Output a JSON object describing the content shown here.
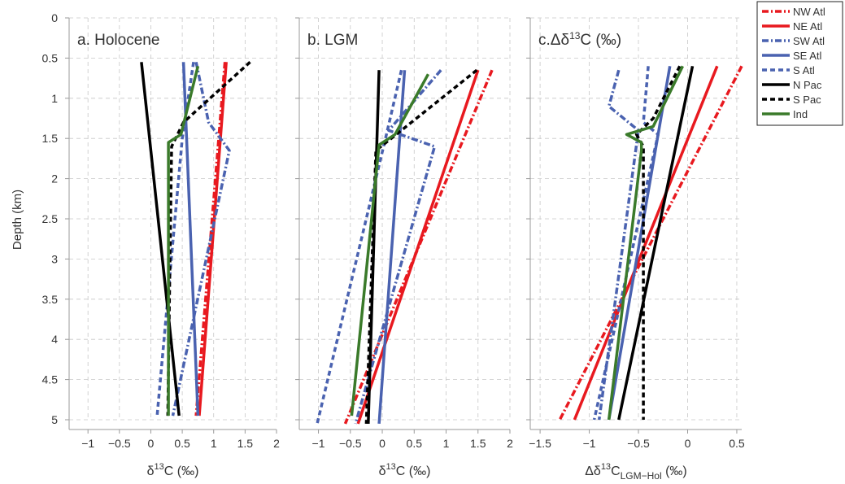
{
  "figure": {
    "ylabel": "Depth (km)",
    "yticks": [
      0,
      0.5,
      1,
      1.5,
      2,
      2.5,
      3,
      3.5,
      4,
      4.5,
      5
    ],
    "ylim": [
      0,
      5
    ],
    "legend": [
      {
        "name": "NW Atl",
        "color": "#e8191f",
        "dash": "dashdot"
      },
      {
        "name": "NE Atl",
        "color": "#e8191f",
        "dash": "solid"
      },
      {
        "name": "SW Atl",
        "color": "#4a62b0",
        "dash": "dashdot"
      },
      {
        "name": "SE Atl",
        "color": "#4a62b0",
        "dash": "solid"
      },
      {
        "name": "S Atl",
        "color": "#4a62b0",
        "dash": "dashed"
      },
      {
        "name": "N Pac",
        "color": "#000000",
        "dash": "solid"
      },
      {
        "name": "S Pac",
        "color": "#000000",
        "dash": "dashed"
      },
      {
        "name": "Ind",
        "color": "#3a7a2a",
        "dash": "solid"
      }
    ]
  },
  "chart_data": [
    {
      "type": "line",
      "title_prefix": "a.",
      "title": "Holocene",
      "xlabel_prefix": "δ",
      "xlabel_sup": "13",
      "xlabel_rest": "C (‰)",
      "xlim": [
        -1.3,
        2
      ],
      "xticks": [
        -1,
        -0.5,
        0,
        0.5,
        1,
        1.5,
        2
      ],
      "ylim": [
        0,
        5
      ],
      "grid": true,
      "series": [
        {
          "name": "NW Atl",
          "x": [
            1.18,
            0.72
          ],
          "y": [
            0.55,
            4.95
          ]
        },
        {
          "name": "NE Atl",
          "x": [
            1.2,
            0.77
          ],
          "y": [
            0.55,
            4.95
          ]
        },
        {
          "name": "SW Atl",
          "x": [
            0.72,
            0.92,
            1.25,
            0.35
          ],
          "y": [
            0.55,
            1.3,
            1.65,
            4.95
          ]
        },
        {
          "name": "SE Atl",
          "x": [
            0.52,
            0.75
          ],
          "y": [
            0.55,
            4.95
          ]
        },
        {
          "name": "S Atl",
          "x": [
            0.68,
            0.5,
            0.1
          ],
          "y": [
            0.55,
            1.5,
            4.95
          ]
        },
        {
          "name": "N Pac",
          "x": [
            -0.15,
            0.45
          ],
          "y": [
            0.55,
            4.95
          ]
        },
        {
          "name": "S Pac",
          "x": [
            1.58,
            0.52,
            0.33,
            0.27
          ],
          "y": [
            0.55,
            1.3,
            1.6,
            4.95
          ]
        },
        {
          "name": "Ind",
          "x": [
            0.75,
            0.48,
            0.28,
            0.28
          ],
          "y": [
            0.6,
            1.45,
            1.55,
            4.95
          ]
        }
      ]
    },
    {
      "type": "line",
      "title_prefix": "b.",
      "title": "LGM",
      "xlabel_prefix": "δ",
      "xlabel_sup": "13",
      "xlabel_rest": "C (‰)",
      "xlim": [
        -1.3,
        2
      ],
      "xticks": [
        -1,
        -0.5,
        0,
        0.5,
        1,
        1.5,
        2
      ],
      "ylim": [
        0,
        5
      ],
      "grid": true,
      "series": [
        {
          "name": "NW Atl",
          "x": [
            1.72,
            -0.58
          ],
          "y": [
            0.65,
            5.05
          ]
        },
        {
          "name": "NE Atl",
          "x": [
            1.5,
            -0.38
          ],
          "y": [
            0.65,
            5.05
          ]
        },
        {
          "name": "SW Atl",
          "x": [
            0.92,
            0.1,
            0.82,
            -0.42
          ],
          "y": [
            0.65,
            1.4,
            1.6,
            5.05
          ]
        },
        {
          "name": "SE Atl",
          "x": [
            0.35,
            -0.05
          ],
          "y": [
            0.65,
            5.05
          ]
        },
        {
          "name": "S Atl",
          "x": [
            0.3,
            0.05,
            -1.02
          ],
          "y": [
            0.65,
            1.5,
            5.05
          ]
        },
        {
          "name": "N Pac",
          "x": [
            -0.05,
            -0.22
          ],
          "y": [
            0.65,
            5.05
          ]
        },
        {
          "name": "S Pac",
          "x": [
            1.48,
            0.22,
            -0.1,
            -0.25
          ],
          "y": [
            0.65,
            1.45,
            1.65,
            5.05
          ]
        },
        {
          "name": "Ind",
          "x": [
            0.72,
            0.2,
            -0.05,
            -0.48
          ],
          "y": [
            0.7,
            1.45,
            1.58,
            4.95
          ]
        }
      ]
    },
    {
      "type": "line",
      "title_prefix": "c.",
      "title": "Δδ",
      "title_sup": "13",
      "title_rest": "C (‰)",
      "xlabel_prefix": "Δδ",
      "xlabel_sup": "13",
      "xlabel_rest": "C",
      "xlabel_sub": "LGM−Hol",
      "xlabel_tail": " (‰)",
      "xlim": [
        -1.6,
        0.55
      ],
      "xticks": [
        -1.5,
        -1,
        -0.5,
        0,
        0.5
      ],
      "ylim": [
        0,
        5
      ],
      "grid": true,
      "series": [
        {
          "name": "NW Atl",
          "x": [
            0.55,
            -1.3
          ],
          "y": [
            0.6,
            5.0
          ]
        },
        {
          "name": "NE Atl",
          "x": [
            0.3,
            -1.15
          ],
          "y": [
            0.6,
            5.0
          ]
        },
        {
          "name": "SW Atl",
          "x": [
            -0.7,
            -0.8,
            -0.5,
            -0.9
          ],
          "y": [
            0.65,
            1.1,
            1.4,
            5.0
          ]
        },
        {
          "name": "SE Atl",
          "x": [
            -0.18,
            -0.8
          ],
          "y": [
            0.6,
            5.0
          ]
        },
        {
          "name": "S Atl",
          "x": [
            -0.4,
            -0.45,
            -0.3,
            -0.95
          ],
          "y": [
            0.6,
            1.3,
            1.45,
            5.0
          ]
        },
        {
          "name": "N Pac",
          "x": [
            0.05,
            -0.7
          ],
          "y": [
            0.6,
            5.0
          ]
        },
        {
          "name": "S Pac",
          "x": [
            -0.08,
            -0.35,
            -0.52,
            -0.45,
            -0.45
          ],
          "y": [
            0.6,
            1.25,
            1.45,
            1.6,
            5.0
          ]
        },
        {
          "name": "Ind",
          "x": [
            -0.05,
            -0.35,
            -0.62,
            -0.47,
            -0.47,
            -0.8
          ],
          "y": [
            0.6,
            1.35,
            1.45,
            1.55,
            1.65,
            5.0
          ]
        }
      ]
    }
  ]
}
